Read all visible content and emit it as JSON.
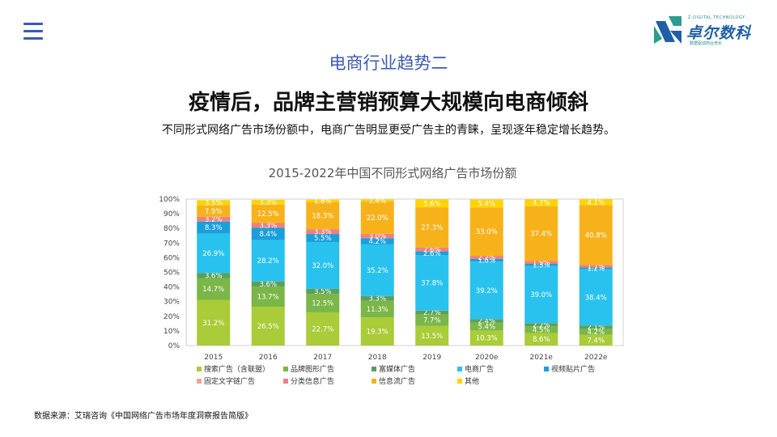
{
  "nav": {
    "menu_icon": "hamburger-menu-icon"
  },
  "logo": {
    "tagline": "Z-DIGITAL TECHNOLOGY",
    "name": "卓尔数科",
    "slogan": "数据驱动商业增长",
    "colors": {
      "primary": "#1f5fa8",
      "secondary": "#2a9d8f"
    }
  },
  "page": {
    "section_title": "电商行业趋势二",
    "headline": "疫情后，品牌主营销预算大规模向电商倾斜",
    "subtext": "不同形式网络广告市场份额中，电商广告明显更受广告主的青睐，呈现逐年稳定增长趋势。",
    "source": "数据来源：艾瑞咨询《中国网络广告市场年度洞察报告简版》"
  },
  "chart_data": {
    "type": "bar",
    "stacked": true,
    "title": "2015-2022年中国不同形式网络广告市场份额",
    "categories": [
      "2015",
      "2016",
      "2017",
      "2018",
      "2019",
      "2020e",
      "2021e",
      "2022e"
    ],
    "yticks": [
      "0%",
      "10%",
      "20%",
      "30%",
      "40%",
      "50%",
      "60%",
      "70%",
      "80%",
      "90%",
      "100%"
    ],
    "ylim": [
      0,
      100
    ],
    "legend_position": "bottom",
    "series": [
      {
        "name": "搜索广告（含联盟）",
        "color": "#a9cc38",
        "values": [
          31.2,
          26.5,
          22.7,
          19.3,
          13.5,
          10.3,
          8.6,
          7.4
        ],
        "labels": [
          "31.2%",
          "26.5%",
          "22.7%",
          "19.3%",
          "13.5%",
          "10.3%",
          "8.6%",
          "7.4%"
        ]
      },
      {
        "name": "品牌图形广告",
        "color": "#7ab648",
        "values": [
          14.7,
          13.7,
          12.5,
          11.3,
          7.7,
          5.4,
          4.5,
          4.2
        ],
        "labels": [
          "14.7%",
          "13.7%",
          "12.5%",
          "11.3%",
          "7.7%",
          "5.4%",
          "4.5%",
          "4.2%"
        ]
      },
      {
        "name": "富媒体广告",
        "color": "#5ba05a",
        "values": [
          3.6,
          3.6,
          3.5,
          3.3,
          2.7,
          2.4,
          2.2,
          2.1
        ],
        "labels": [
          "3.6%",
          "3.6%",
          "3.5%",
          "3.3%",
          "2.7%",
          "2.4%",
          "2.2%",
          "2.1%"
        ]
      },
      {
        "name": "电商广告",
        "color": "#29c2ee",
        "values": [
          26.9,
          28.2,
          32.0,
          35.2,
          37.8,
          39.2,
          39.0,
          38.4
        ],
        "labels": [
          "26.9%",
          "28.2%",
          "32.0%",
          "35.2%",
          "37.8%",
          "39.2%",
          "39.0%",
          "38.4%"
        ]
      },
      {
        "name": "视频贴片广告",
        "color": "#1a9fdc",
        "values": [
          8.3,
          8.4,
          5.5,
          4.2,
          2.6,
          1.8,
          1.5,
          1.2
        ],
        "labels": [
          "8.3%",
          "8.4%",
          "5.5%",
          "4.2%",
          "2.6%",
          "1.8%",
          "1.5%",
          "1.2%"
        ]
      },
      {
        "name": "固定文字链广告",
        "color": "#f2a39a",
        "values": [
          0.0,
          0.0,
          0.0,
          0.0,
          0.0,
          0.0,
          0.0,
          0.0
        ],
        "labels": [
          "",
          "",
          "",
          "",
          "",
          "",
          "",
          ""
        ]
      },
      {
        "name": "分类信息广告",
        "color": "#f08080",
        "values": [
          3.2,
          3.3,
          3.3,
          3.0,
          2.6,
          2.2,
          1.9,
          1.7
        ],
        "labels": [
          "3.2%",
          "3.3%",
          "3.3%",
          "3.0%",
          "2.6%",
          "2.2%",
          "1.9%",
          "1.7%"
        ]
      },
      {
        "name": "信息流广告",
        "color": "#f7b21b",
        "values": [
          7.9,
          12.5,
          18.3,
          22.0,
          27.3,
          33.0,
          37.4,
          40.8
        ],
        "labels": [
          "7.9%",
          "12.5%",
          "18.3%",
          "22.0%",
          "27.3%",
          "33.0%",
          "37.4%",
          "40.8%"
        ]
      },
      {
        "name": "其他",
        "color": "#ffd400",
        "values": [
          3.5,
          3.3,
          1.8,
          1.4,
          5.6,
          5.4,
          4.7,
          4.1
        ],
        "labels": [
          "3.5%",
          "3.3%",
          "1.8%",
          "1.4%",
          "5.6%",
          "5.4%",
          "4.7%",
          "4.1%"
        ]
      }
    ]
  }
}
